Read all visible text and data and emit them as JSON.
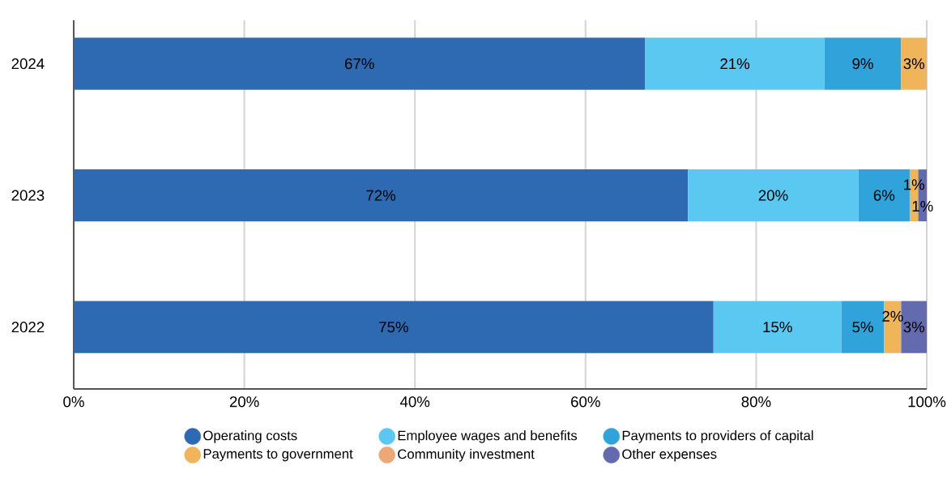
{
  "chart_data": {
    "type": "bar",
    "orientation": "horizontal",
    "stacked": true,
    "categories": [
      "2024",
      "2023",
      "2022"
    ],
    "series": [
      {
        "name": "Operating costs",
        "color": "#2e6ab2",
        "values": [
          67,
          72,
          75
        ],
        "value_labels": [
          "67%",
          "72%",
          "75%"
        ]
      },
      {
        "name": "Employee wages and benefits",
        "color": "#5bc8f2",
        "values": [
          21,
          20,
          15
        ],
        "value_labels": [
          "21%",
          "20%",
          "15%"
        ]
      },
      {
        "name": "Payments to providers of capital",
        "color": "#30a3db",
        "values": [
          9,
          6,
          5
        ],
        "value_labels": [
          "9%",
          "6%",
          "5%"
        ]
      },
      {
        "name": "Payments to government",
        "color": "#f0b55a",
        "values": [
          3,
          1,
          2
        ],
        "value_labels": [
          "3%",
          "1%",
          "2%"
        ]
      },
      {
        "name": "Community investment",
        "color": "#eea776",
        "values": [
          null,
          null,
          null
        ],
        "value_labels": [
          null,
          null,
          null
        ]
      },
      {
        "name": "Other expenses",
        "color": "#636aae",
        "values": [
          null,
          1,
          3
        ],
        "value_labels": [
          null,
          "1%",
          "3%"
        ]
      }
    ],
    "xlim": [
      0,
      100
    ],
    "xticks": [
      {
        "value": 0,
        "label": "0%"
      },
      {
        "value": 20,
        "label": "20%"
      },
      {
        "value": 40,
        "label": "40%"
      },
      {
        "value": 60,
        "label": "60%"
      },
      {
        "value": 80,
        "label": "80%"
      },
      {
        "value": 100,
        "label": "100%"
      }
    ],
    "grid": "x",
    "legend": "bottom"
  }
}
